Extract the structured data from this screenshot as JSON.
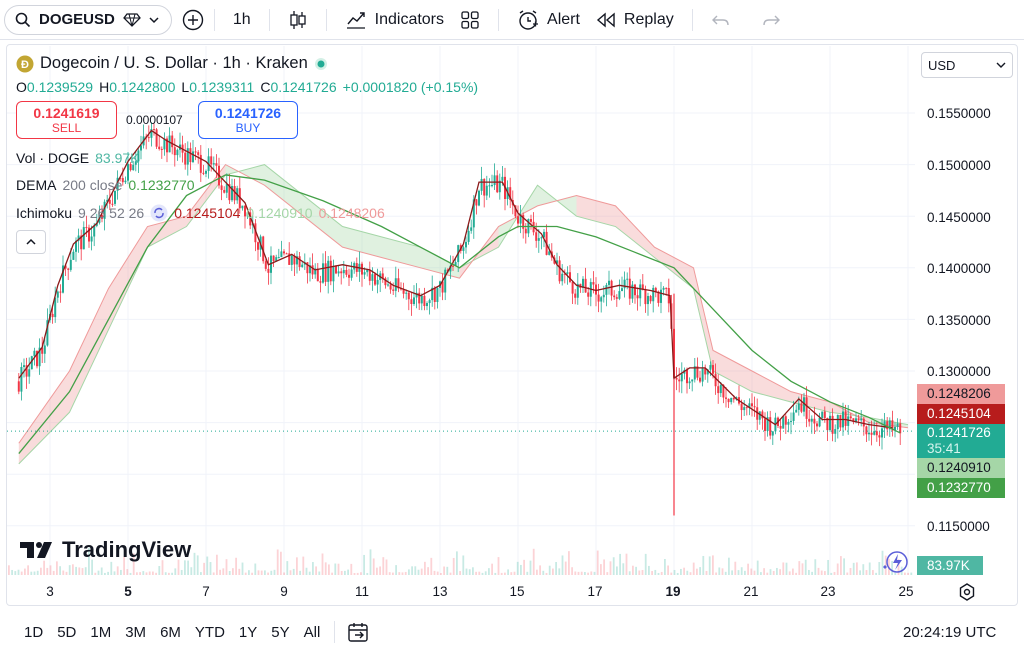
{
  "toolbar": {
    "symbol": "DOGEUSD",
    "interval": "1h",
    "indicators_label": "Indicators",
    "alert_label": "Alert",
    "replay_label": "Replay"
  },
  "legend": {
    "title": "Dogecoin / U. S. Dollar · 1h · Kraken",
    "o_label": "O",
    "o_value": "0.1239529",
    "h_label": "H",
    "h_value": "0.1242800",
    "l_label": "L",
    "l_value": "0.1239311",
    "c_label": "C",
    "c_value": "0.1241726",
    "change": "+0.0001820 (+0.15%)",
    "sell_price": "0.1241619",
    "sell_label": "SELL",
    "buy_price": "0.1241726",
    "buy_label": "BUY",
    "spread": "0.0000107",
    "vol_name": "Vol · DOGE",
    "vol_value": "83.97K",
    "dema_name": "DEMA",
    "dema_params": "200 close",
    "dema_value": "0.1232770",
    "ichi_name": "Ichimoku",
    "ichi_params": "9 26 52 26",
    "ichi_v1": "0.1245104",
    "ichi_v2": "0.1240910",
    "ichi_v3": "0.1248206"
  },
  "currency": "USD",
  "axis": {
    "y_labels": [
      "0.1550000",
      "0.1500000",
      "0.1450000",
      "0.1400000",
      "0.1350000",
      "0.1300000",
      "0.1150000"
    ],
    "x_labels": [
      "3",
      "5",
      "7",
      "9",
      "11",
      "13",
      "15",
      "17",
      "19",
      "21",
      "23",
      "25"
    ]
  },
  "tags": {
    "t1": "0.1248206",
    "t2": "0.1245104",
    "t3": "0.1241726",
    "t3_time": "35:41",
    "t4": "0.1240910",
    "t5": "0.1232770",
    "vol": "83.97K"
  },
  "logo_text": "TradingView",
  "bottom": {
    "ranges": [
      "1D",
      "5D",
      "1M",
      "3M",
      "6M",
      "YTD",
      "1Y",
      "5Y",
      "All"
    ],
    "clock": "20:24:19 UTC"
  },
  "chart_data": {
    "type": "candlestick",
    "y_range": [
      0.111,
      0.158
    ],
    "x_day_range": [
      2.2,
      25.3
    ],
    "close_path": [
      [
        2.2,
        0.129
      ],
      [
        2.8,
        0.132
      ],
      [
        3.2,
        0.138
      ],
      [
        3.6,
        0.142
      ],
      [
        4.2,
        0.144
      ],
      [
        4.6,
        0.147
      ],
      [
        5.0,
        0.15
      ],
      [
        5.6,
        0.153
      ],
      [
        6.0,
        0.152
      ],
      [
        6.5,
        0.151
      ],
      [
        7.0,
        0.15
      ],
      [
        7.5,
        0.148
      ],
      [
        8.0,
        0.146
      ],
      [
        8.6,
        0.14
      ],
      [
        9.2,
        0.141
      ],
      [
        9.8,
        0.1395
      ],
      [
        10.5,
        0.14
      ],
      [
        11.2,
        0.1395
      ],
      [
        11.8,
        0.138
      ],
      [
        12.5,
        0.137
      ],
      [
        13.0,
        0.138
      ],
      [
        13.6,
        0.142
      ],
      [
        14.0,
        0.148
      ],
      [
        14.6,
        0.148
      ],
      [
        15.0,
        0.145
      ],
      [
        15.6,
        0.143
      ],
      [
        16.0,
        0.14
      ],
      [
        16.5,
        0.138
      ],
      [
        17.0,
        0.1375
      ],
      [
        17.6,
        0.138
      ],
      [
        18.4,
        0.1375
      ],
      [
        18.9,
        0.137
      ],
      [
        19.0,
        0.129
      ],
      [
        19.4,
        0.13
      ],
      [
        19.8,
        0.13
      ],
      [
        20.2,
        0.1285
      ],
      [
        20.6,
        0.127
      ],
      [
        21.0,
        0.126
      ],
      [
        21.6,
        0.1245
      ],
      [
        22.2,
        0.127
      ],
      [
        22.8,
        0.125
      ],
      [
        23.4,
        0.125
      ],
      [
        24.0,
        0.1245
      ],
      [
        24.6,
        0.1242
      ]
    ],
    "dema_path": [
      [
        2.2,
        0.122
      ],
      [
        3.5,
        0.128
      ],
      [
        4.5,
        0.135
      ],
      [
        5.5,
        0.142
      ],
      [
        6.5,
        0.147
      ],
      [
        7.5,
        0.149
      ],
      [
        8.5,
        0.1485
      ],
      [
        10.0,
        0.1465
      ],
      [
        11.5,
        0.144
      ],
      [
        12.5,
        0.142
      ],
      [
        13.5,
        0.14
      ],
      [
        14.5,
        0.143
      ],
      [
        15.0,
        0.144
      ],
      [
        16.0,
        0.144
      ],
      [
        17.0,
        0.143
      ],
      [
        18.0,
        0.1415
      ],
      [
        19.0,
        0.14
      ],
      [
        20.0,
        0.136
      ],
      [
        21.0,
        0.132
      ],
      [
        22.0,
        0.129
      ],
      [
        23.0,
        0.127
      ],
      [
        24.0,
        0.1255
      ],
      [
        24.8,
        0.124
      ]
    ],
    "spans": [
      [
        2.2,
        0.121,
        0.123
      ],
      [
        3.5,
        0.126,
        0.13
      ],
      [
        4.5,
        0.134,
        0.138
      ],
      [
        5.5,
        0.142,
        0.144
      ],
      [
        6.5,
        0.144,
        0.145
      ],
      [
        7.5,
        0.149,
        0.15
      ],
      [
        8.5,
        0.15,
        0.148
      ],
      [
        9.5,
        0.147,
        0.145
      ],
      [
        10.5,
        0.144,
        0.142
      ],
      [
        11.5,
        0.143,
        0.141
      ],
      [
        12.5,
        0.142,
        0.14
      ],
      [
        13.5,
        0.14,
        0.139
      ],
      [
        14.5,
        0.142,
        0.144
      ],
      [
        15.5,
        0.148,
        0.146
      ],
      [
        16.5,
        0.145,
        0.147
      ],
      [
        17.5,
        0.144,
        0.146
      ],
      [
        18.5,
        0.141,
        0.142
      ],
      [
        19.5,
        0.138,
        0.14
      ],
      [
        20.0,
        0.13,
        0.132
      ],
      [
        21.0,
        0.128,
        0.13
      ],
      [
        22.0,
        0.127,
        0.128
      ],
      [
        23.0,
        0.126,
        0.127
      ],
      [
        24.0,
        0.1255,
        0.125
      ],
      [
        25.0,
        0.1248,
        0.1245
      ]
    ],
    "last_price": 0.1241726
  }
}
